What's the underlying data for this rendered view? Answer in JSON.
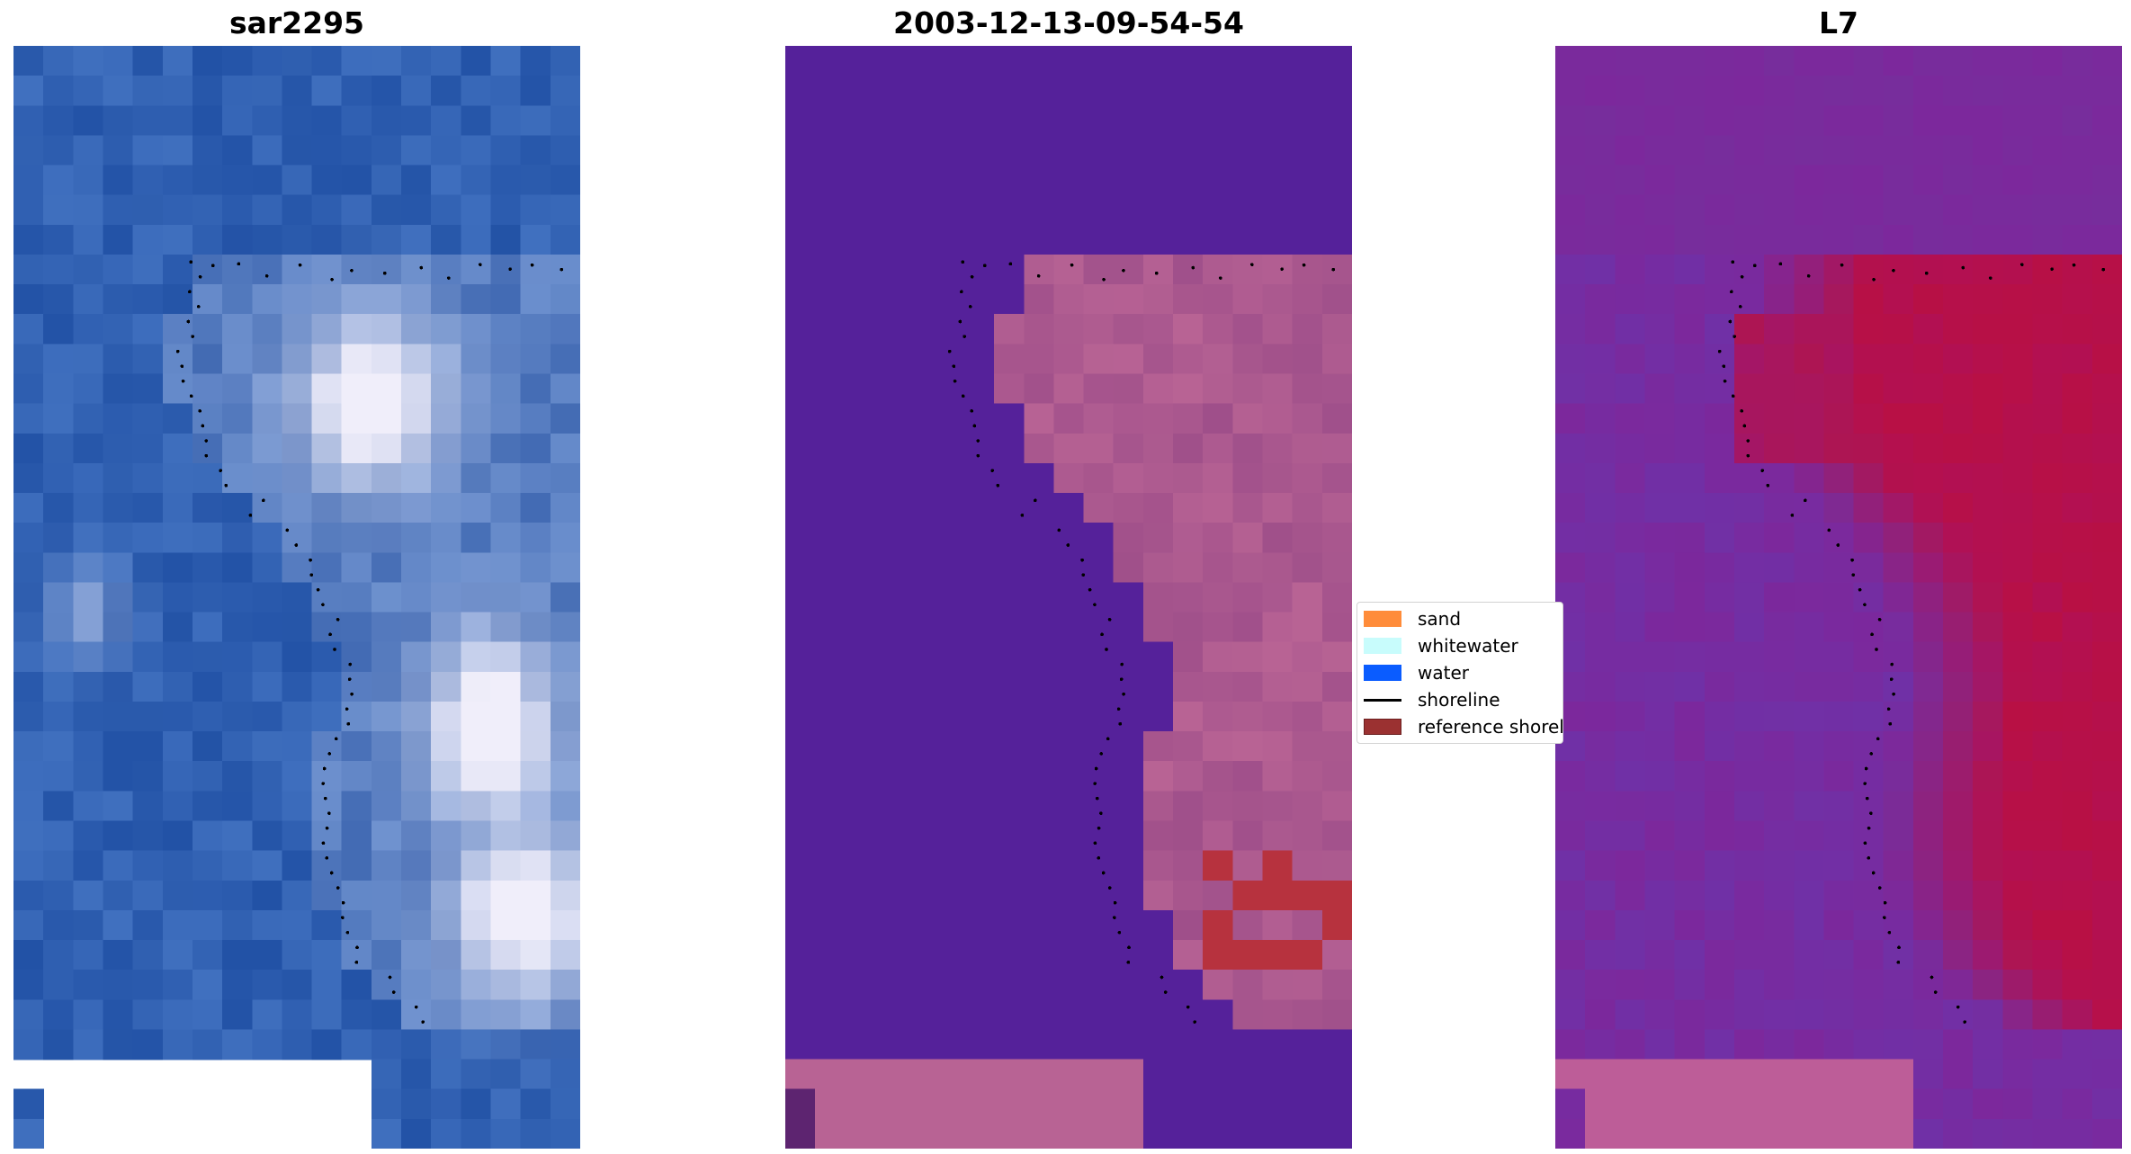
{
  "panels": [
    {
      "title": "sar2295",
      "kind": "rgb"
    },
    {
      "title": "2003-12-13-09-54-54",
      "kind": "classified"
    },
    {
      "title": "L7",
      "kind": "index"
    }
  ],
  "legend": {
    "items": [
      {
        "label": "sand",
        "color": "#ff8c3a",
        "kind": "patch"
      },
      {
        "label": "whitewater",
        "color": "#c8fcfc",
        "kind": "patch"
      },
      {
        "label": "water",
        "color": "#0a5cff",
        "kind": "patch"
      },
      {
        "label": "shoreline",
        "color": "#000000",
        "kind": "line"
      },
      {
        "label": "reference shoreline",
        "color": "#9b3131",
        "kind": "patch"
      }
    ]
  },
  "colors": {
    "water_blue": "#2355a8",
    "class_water": "#55219a",
    "class_sand": "#b86394",
    "class_reference": "#b7323e",
    "index_low": "#7c2a9c",
    "index_high": "#c4083a"
  }
}
